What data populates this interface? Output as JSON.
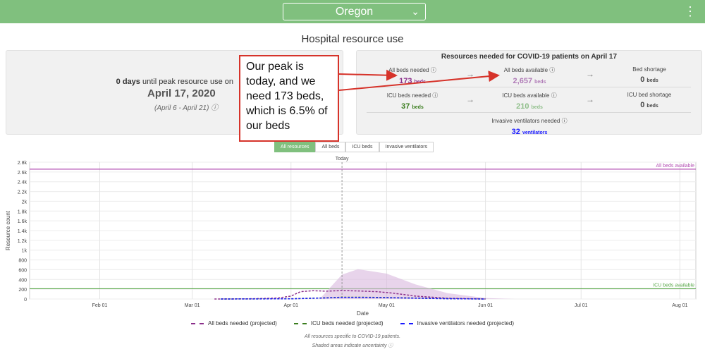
{
  "header": {
    "state": "Oregon"
  },
  "section_title": "Hospital resource use",
  "peak": {
    "days": "0 days",
    "until_text": " until peak resource use on",
    "date": "April 17, 2020",
    "range": "(April 6 - April 21)"
  },
  "resources": {
    "title": "Resources needed for COVID-19 patients on April 17",
    "all_beds_needed": {
      "label": "All beds needed",
      "value": "173",
      "unit": "beds"
    },
    "all_beds_available": {
      "label": "All beds available",
      "value": "2,657",
      "unit": "beds"
    },
    "bed_shortage": {
      "label": "Bed shortage",
      "value": "0",
      "unit": "beds"
    },
    "icu_beds_needed": {
      "label": "ICU beds needed",
      "value": "37",
      "unit": "beds"
    },
    "icu_beds_available": {
      "label": "ICU beds available",
      "value": "210",
      "unit": "beds"
    },
    "icu_bed_shortage": {
      "label": "ICU bed shortage",
      "value": "0",
      "unit": "beds"
    },
    "ventilators": {
      "label": "Invasive ventilators needed",
      "value": "32",
      "unit": "ventilators"
    }
  },
  "annotation": "Our peak is today, and we need 173 beds, which is 6.5% of our beds",
  "tabs": [
    "All resources",
    "All beds",
    "ICU beds",
    "Invasive ventilators"
  ],
  "colors": {
    "green": "#80c07e",
    "purple": "#8b2f8b",
    "icu_green": "#3a7d1e",
    "blue": "#1a1aff",
    "annotation_red": "#d6332a"
  },
  "chart_data": {
    "type": "line",
    "xlabel": "Date",
    "ylabel": "Resource count",
    "today_label": "Today",
    "x_ticks": [
      "Feb 01",
      "Mar 01",
      "Apr 01",
      "May 01",
      "Jun 01",
      "Jul 01",
      "Aug 01"
    ],
    "y_ticks": [
      "0",
      "200",
      "400",
      "600",
      "800",
      "1k",
      "1.2k",
      "1.4k",
      "1.6k",
      "1.8k",
      "2k",
      "2.2k",
      "2.4k",
      "2.6k",
      "2.8k"
    ],
    "ylim": [
      0,
      2800
    ],
    "reference_lines": [
      {
        "label": "All beds available",
        "value": 2657
      },
      {
        "label": "ICU beds available",
        "value": 210
      }
    ],
    "series": [
      {
        "name": "All beds needed (projected)",
        "x": [
          "Mar 08",
          "Mar 20",
          "Mar 28",
          "Apr 01",
          "Apr 04",
          "Apr 08",
          "Apr 12",
          "Apr 17",
          "Apr 22",
          "Apr 28",
          "May 03",
          "May 10",
          "May 20",
          "Jun 01"
        ],
        "values": [
          0,
          5,
          20,
          60,
          150,
          170,
          160,
          173,
          165,
          150,
          120,
          60,
          15,
          0
        ]
      },
      {
        "name": "ICU beds needed (projected)",
        "x": [
          "Mar 10",
          "Apr 01",
          "Apr 10",
          "Apr 17",
          "Apr 25",
          "May 05",
          "May 20",
          "Jun 01"
        ],
        "values": [
          0,
          5,
          20,
          37,
          35,
          25,
          8,
          0
        ]
      },
      {
        "name": "Invasive ventilators needed (projected)",
        "x": [
          "Mar 10",
          "Apr 01",
          "Apr 10",
          "Apr 17",
          "Apr 25",
          "May 05",
          "May 20",
          "Jun 01"
        ],
        "values": [
          0,
          4,
          18,
          32,
          30,
          22,
          6,
          0
        ]
      }
    ]
  },
  "footnotes": [
    "All resources specific to COVID-19 patients.",
    "Shaded areas indicate uncertainty"
  ]
}
